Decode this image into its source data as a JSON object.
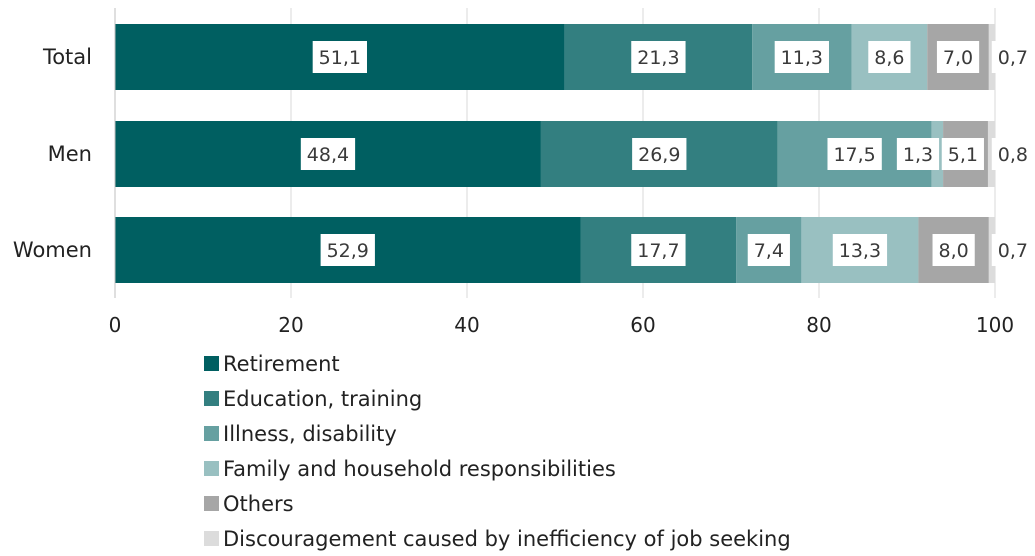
{
  "chart_data": {
    "type": "bar",
    "orientation": "horizontal",
    "stacked": true,
    "categories": [
      "Total",
      "Men",
      "Women"
    ],
    "series": [
      {
        "name": "Retirement",
        "color": "#005f61",
        "values": [
          51.1,
          48.4,
          52.9
        ],
        "labels": [
          "51,1",
          "48,4",
          "52,9"
        ]
      },
      {
        "name": "Education, training",
        "color": "#337f80",
        "values": [
          21.3,
          26.9,
          17.7
        ],
        "labels": [
          "21,3",
          "26,9",
          "17,7"
        ]
      },
      {
        "name": "Illness, disability",
        "color": "#66a0a1",
        "values": [
          11.3,
          17.5,
          7.4
        ],
        "labels": [
          "11,3",
          "17,5",
          "7,4"
        ]
      },
      {
        "name": "Family and household responsibilities",
        "color": "#99c0c1",
        "values": [
          8.6,
          1.3,
          13.3
        ],
        "labels": [
          "8,6",
          "1,3",
          "13,3"
        ]
      },
      {
        "name": "Others",
        "color": "#a6a6a6",
        "values": [
          7.0,
          5.1,
          8.0
        ],
        "labels": [
          "7,0",
          "5,1",
          "8,0"
        ]
      },
      {
        "name": "Discouragement caused by inefficiency of job seeking",
        "color": "#dcdcdc",
        "values": [
          0.7,
          0.8,
          0.7
        ],
        "labels": [
          "0,7",
          "0,8",
          "0,7"
        ]
      }
    ],
    "xlim": [
      0,
      100
    ],
    "xticks": [
      0,
      20,
      40,
      60,
      80,
      100
    ],
    "grid": true,
    "legend_position": "bottom"
  }
}
